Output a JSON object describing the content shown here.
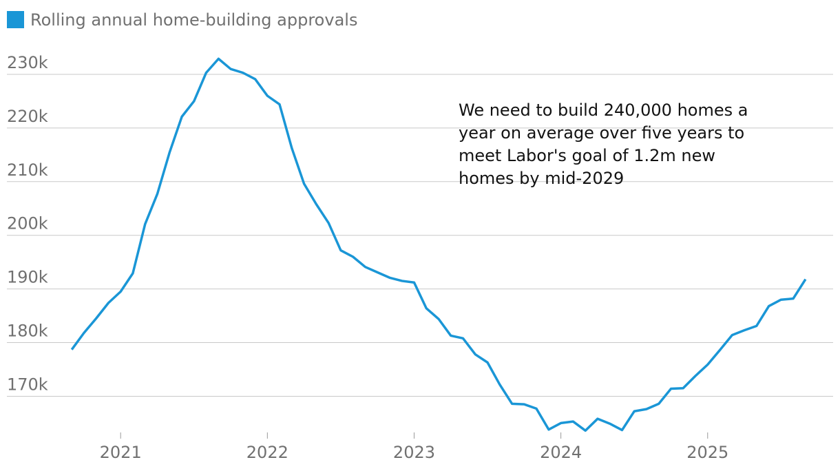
{
  "chart_data": {
    "type": "line",
    "legend": "Rolling annual home-building approvals",
    "annotation_lines": [
      "We need to build 240,000 homes a",
      "year on average over five years to",
      "meet Labor's goal of 1.2m new",
      "homes by mid-2029"
    ],
    "x": [
      2020.667,
      2020.75,
      2020.833,
      2020.917,
      2021,
      2021.083,
      2021.167,
      2021.25,
      2021.333,
      2021.417,
      2021.5,
      2021.583,
      2021.667,
      2021.75,
      2021.833,
      2021.917,
      2022,
      2022.083,
      2022.167,
      2022.25,
      2022.333,
      2022.417,
      2022.5,
      2022.583,
      2022.667,
      2022.75,
      2022.833,
      2022.917,
      2023,
      2023.083,
      2023.167,
      2023.25,
      2023.333,
      2023.417,
      2023.5,
      2023.583,
      2023.667,
      2023.75,
      2023.833,
      2023.917,
      2024,
      2024.083,
      2024.167,
      2024.25,
      2024.333,
      2024.417,
      2024.5,
      2024.583,
      2024.667,
      2024.75,
      2024.833,
      2024.917,
      2025,
      2025.083,
      2025.167,
      2025.25,
      2025.333,
      2025.417,
      2025.5,
      2025.583,
      2025.667
    ],
    "series": [
      {
        "name": "Rolling annual home-building approvals",
        "color": "#1a96d6",
        "values": [
          178.7,
          181.8,
          184.5,
          187.4,
          189.5,
          192.9,
          202.1,
          207.7,
          215.4,
          222.1,
          225,
          230.3,
          232.9,
          231,
          230.3,
          229.1,
          226,
          224.4,
          216.2,
          209.6,
          205.8,
          202.3,
          197.2,
          196,
          194.1,
          193.1,
          192.1,
          191.5,
          191.2,
          186.4,
          184.4,
          181.3,
          180.8,
          177.8,
          176.3,
          172.2,
          168.6,
          168.5,
          167.7,
          163.8,
          165,
          165.3,
          163.6,
          165.8,
          164.9,
          163.7,
          167.2,
          167.6,
          168.6,
          171.4,
          171.5,
          173.8,
          175.9,
          178.6,
          181.4,
          182.3,
          183.1,
          186.8,
          188,
          188.2,
          191.8
        ]
      }
    ],
    "xlim": [
      2020.225,
      2025.855
    ],
    "xticks": [
      2021,
      2022,
      2023,
      2024,
      2025
    ],
    "ylim": [
      163,
      235
    ],
    "yticks": [
      {
        "value": 170,
        "label": "170k"
      },
      {
        "value": 180,
        "label": "180k"
      },
      {
        "value": 190,
        "label": "190k"
      },
      {
        "value": 200,
        "label": "200k"
      },
      {
        "value": 210,
        "label": "210k"
      },
      {
        "value": 220,
        "label": "220k"
      },
      {
        "value": 230,
        "label": "230k"
      }
    ],
    "grid": true
  }
}
